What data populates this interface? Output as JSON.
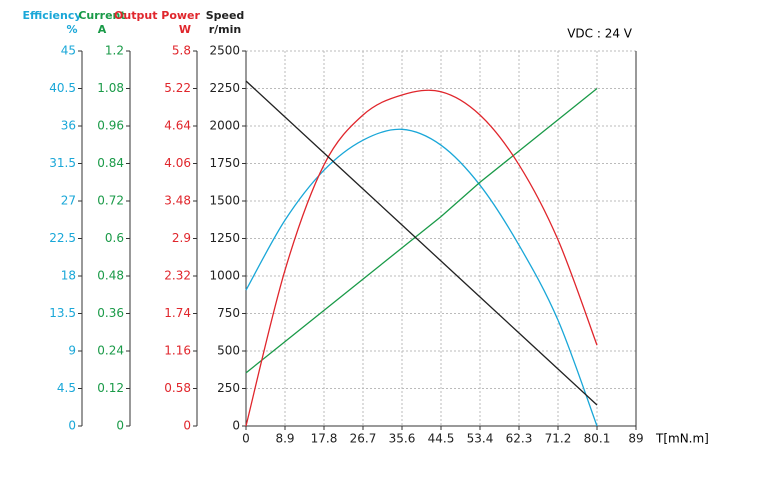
{
  "chart_data": {
    "type": "line",
    "annotation": "VDC : 24 V",
    "x_label": "T[mN.m]",
    "xlim": [
      0,
      89
    ],
    "xticks": [
      0,
      8.9,
      17.8,
      26.7,
      35.6,
      44.5,
      53.4,
      62.3,
      71.2,
      80.1,
      89
    ],
    "grid": true,
    "x": [
      0,
      8.9,
      17.8,
      26.7,
      35.6,
      44.5,
      53.4,
      62.3,
      71.2,
      80.1
    ],
    "axes": [
      {
        "title": "Efficiency",
        "unit": "%",
        "color": "#1aa7d8",
        "lim": [
          0,
          45
        ],
        "ticks": [
          0,
          4.5,
          9,
          13.5,
          18,
          22.5,
          27,
          31.5,
          36,
          40.5,
          45
        ]
      },
      {
        "title": "Current",
        "unit": "A",
        "color": "#1a9a48",
        "lim": [
          0,
          1.2
        ],
        "ticks": [
          0,
          0.12,
          0.24,
          0.36,
          0.48,
          0.6,
          0.72,
          0.84,
          0.96,
          1.08,
          1.2
        ]
      },
      {
        "title": "Output Power",
        "unit": "W",
        "color": "#e0262c",
        "lim": [
          0,
          5.8
        ],
        "ticks": [
          0,
          0.58,
          1.16,
          1.74,
          2.32,
          2.9,
          3.48,
          4.06,
          4.64,
          5.22,
          5.8
        ]
      },
      {
        "title": "Speed",
        "unit": "r/min",
        "color": "#222222",
        "lim": [
          0,
          2500
        ],
        "ticks": [
          0,
          250,
          500,
          750,
          1000,
          1250,
          1500,
          1750,
          2000,
          2250,
          2500
        ]
      }
    ],
    "series": [
      {
        "axis": 0,
        "color": "#1aa7d8",
        "smooth": true,
        "values": [
          16.3,
          24.7,
          30.7,
          34.3,
          35.6,
          33.7,
          28.9,
          21.7,
          12.7,
          0
        ]
      },
      {
        "axis": 1,
        "color": "#1a9a48",
        "smooth": false,
        "values": [
          0.17,
          0.27,
          0.37,
          0.47,
          0.57,
          0.67,
          0.78,
          0.88,
          0.98,
          1.08
        ]
      },
      {
        "axis": 2,
        "color": "#e0262c",
        "smooth": true,
        "values": [
          0,
          2.41,
          4.04,
          4.81,
          5.12,
          5.17,
          4.81,
          4.04,
          2.88,
          1.25
        ]
      },
      {
        "axis": 3,
        "color": "#222222",
        "smooth": false,
        "values": [
          2300,
          2060,
          1820,
          1580,
          1340,
          1100,
          860,
          620,
          380,
          140
        ]
      }
    ]
  }
}
